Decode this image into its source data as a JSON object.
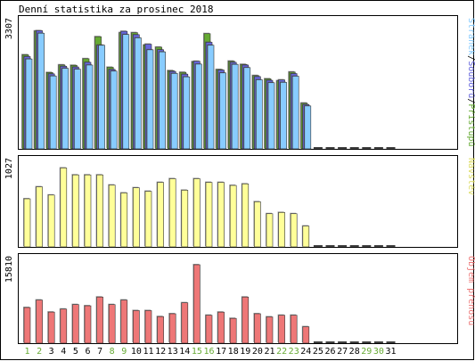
{
  "chart_data": {
    "type": "bar",
    "title": "Denní statistika za prosinec 2018",
    "categories": [
      "1",
      "2",
      "3",
      "4",
      "5",
      "6",
      "7",
      "8",
      "9",
      "10",
      "11",
      "12",
      "13",
      "14",
      "15",
      "16",
      "17",
      "18",
      "19",
      "20",
      "21",
      "22",
      "23",
      "24",
      "25",
      "26",
      "27",
      "28",
      "29",
      "30",
      "31"
    ],
    "weekend_days": [
      "1",
      "2",
      "8",
      "9",
      "15",
      "16",
      "22",
      "23",
      "29",
      "30"
    ],
    "colors": {
      "pristupy": "#66aa33",
      "soubory": "#6666dd",
      "stranky": "#88ccff",
      "navstevy": "#ffff99",
      "prenos": "#ee7777",
      "weekday_label": "#000000",
      "weekend_label": "#66aa33"
    },
    "panels": [
      {
        "id": "hits",
        "max_label": "3307",
        "ymax": 3307,
        "legend": [
          {
            "text": "Stránek",
            "color": "#88ccff"
          },
          {
            "text": "/",
            "color": "#000000"
          },
          {
            "text": "Souborů",
            "color": "#6666dd"
          },
          {
            "text": "/",
            "color": "#000000"
          },
          {
            "text": "Přístupů",
            "color": "#66aa33"
          }
        ],
        "series": [
          {
            "name": "Přístupů",
            "color": "#66aa33",
            "values": [
              2548,
              3192,
              2068,
              2275,
              2263,
              2442,
              3038,
              2210,
              3147,
              3147,
              2813,
              2755,
              2119,
              2073,
              2361,
              3120,
              2149,
              2376,
              2288,
              1986,
              1898,
              1845,
              2082,
              1240,
              0,
              0,
              0,
              0,
              0,
              0,
              0
            ]
          },
          {
            "name": "Souborů",
            "color": "#6666dd",
            "values": [
              2500,
              3200,
              2030,
              2238,
              2217,
              2344,
              2811,
              2152,
              3183,
              3092,
              2835,
              2685,
              2098,
              2023,
              2372,
              2887,
              2133,
              2343,
              2270,
              1957,
              1857,
              1868,
              2039,
              1202,
              0,
              0,
              0,
              0,
              0,
              0,
              0
            ]
          },
          {
            "name": "Stránek",
            "color": "#88ccff",
            "values": [
              2434,
              3132,
              1974,
              2181,
              2157,
              2270,
              2805,
              2106,
              3097,
              3006,
              2683,
              2627,
              2043,
              1950,
              2295,
              2806,
              2057,
              2288,
              2201,
              1871,
              1792,
              1801,
              1968,
              1162,
              0,
              0,
              0,
              0,
              0,
              0,
              0
            ]
          }
        ]
      },
      {
        "id": "visits",
        "max_label": "1027",
        "ymax": 1027,
        "legend": [
          {
            "text": "Návštěv",
            "color": "#dddd66"
          }
        ],
        "series": [
          {
            "name": "Návštěv",
            "color": "#ffff99",
            "values": [
              616,
              769,
              664,
              1011,
              922,
              922,
              922,
              792,
              691,
              757,
              712,
              826,
              873,
              726,
              873,
              826,
              826,
              787,
              807,
              578,
              425,
              441,
              425,
              267,
              0,
              0,
              0,
              0,
              0,
              0,
              0
            ]
          }
        ]
      },
      {
        "id": "traffic",
        "max_label": "15810",
        "ymax": 15810,
        "legend": [
          {
            "text": "Objem přenosu",
            "color": "#ee7777"
          }
        ],
        "series": [
          {
            "name": "Objem přenosu",
            "color": "#ee7777",
            "values": [
              7186,
              8695,
              6269,
              6874,
              7781,
              7540,
              9301,
              7781,
              8695,
              6569,
              6569,
              5362,
              5933,
              8146,
              15810,
              5632,
              6260,
              4995,
              9301,
              5933,
              5300,
              5632,
              5632,
              3314,
              0,
              0,
              0,
              0,
              0,
              0,
              0
            ]
          }
        ]
      }
    ]
  }
}
